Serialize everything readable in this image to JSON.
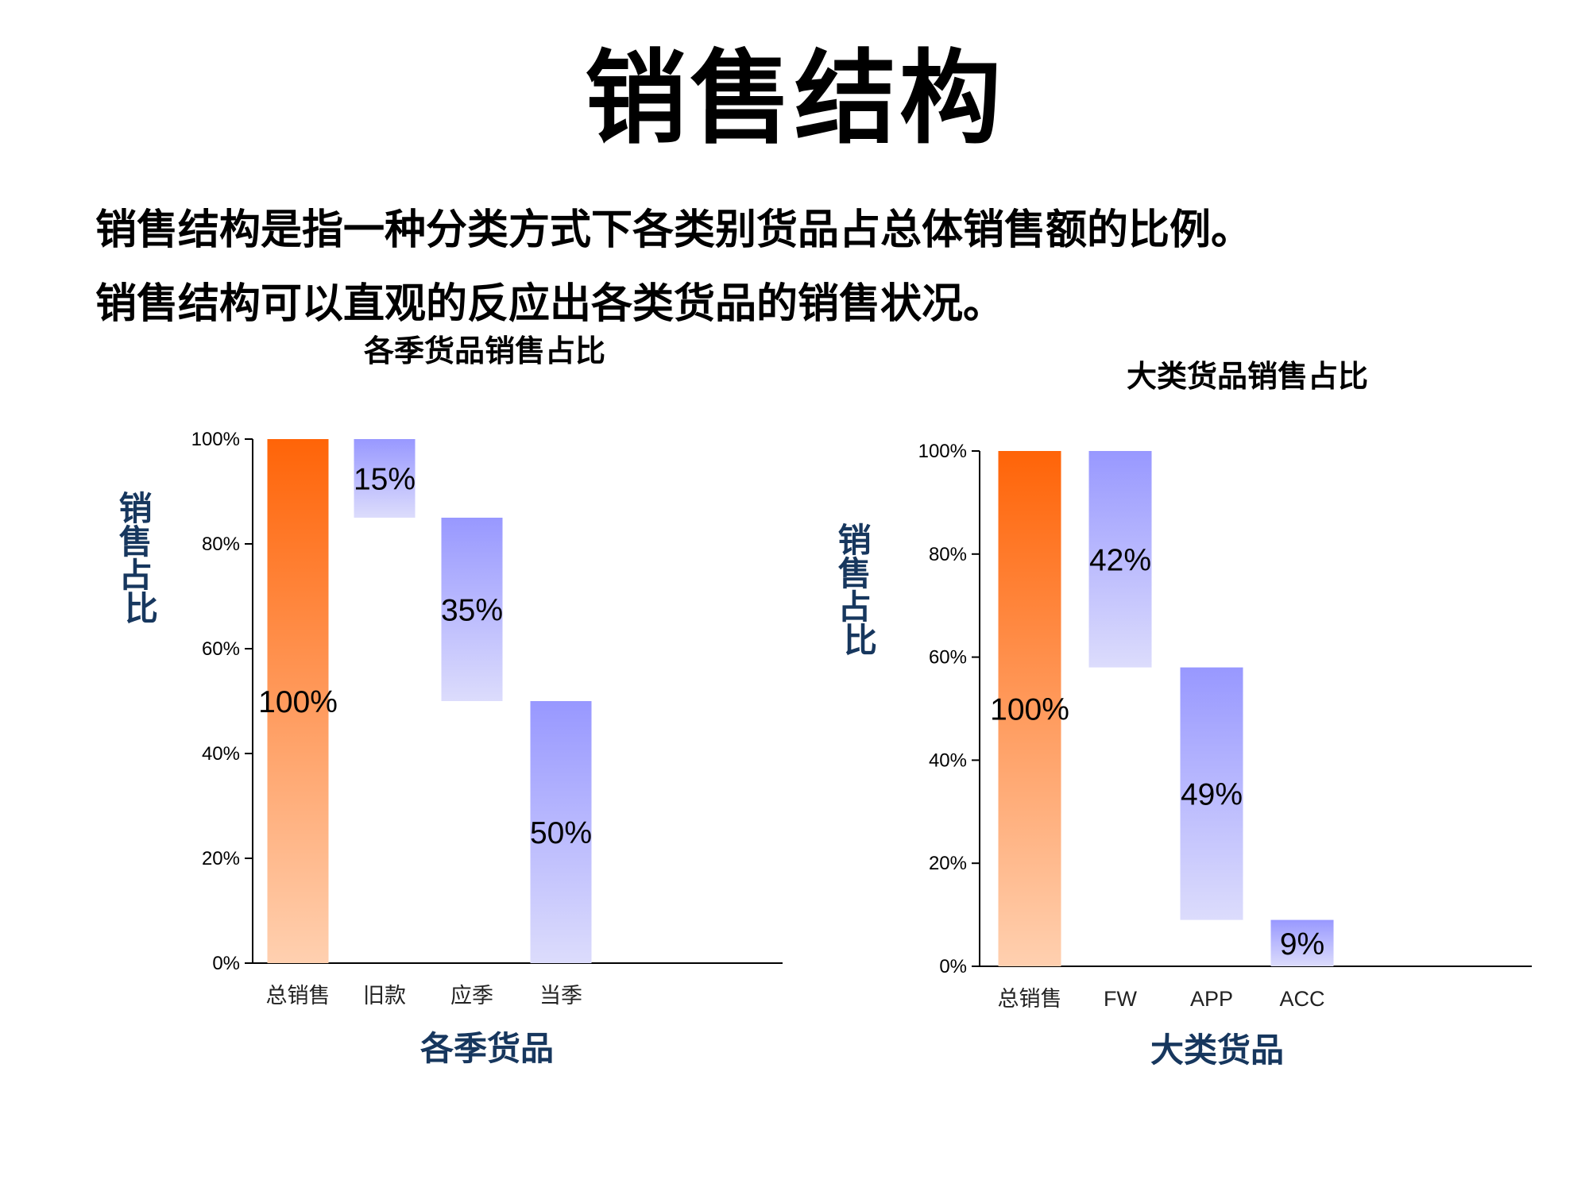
{
  "page": {
    "title": "销售结构",
    "description_1": "销售结构是指一种分类方式下各类别货品占总体销售额的比例。",
    "description_2": "销售结构可以直观的反应出各类货品的销售状况。"
  },
  "colors": {
    "total_bar_top": "#ff6408",
    "total_bar_bottom": "#ffd0b0",
    "part_bar_top": "#9898ff",
    "part_bar_bottom": "#dcdcfc",
    "axis_title": "#17375e"
  },
  "chart_data": [
    {
      "type": "bar",
      "subtype": "waterfall",
      "title": "各季货品销售占比",
      "xlabel": "各季货品",
      "ylabel": "销售占比",
      "ylim": [
        0,
        100
      ],
      "yticks": [
        "0%",
        "20%",
        "40%",
        "60%",
        "80%",
        "100%"
      ],
      "categories": [
        "总销售",
        "旧款",
        "应季",
        "当季"
      ],
      "values": [
        100,
        15,
        35,
        50
      ],
      "ranges": [
        [
          0,
          100
        ],
        [
          85,
          100
        ],
        [
          50,
          85
        ],
        [
          0,
          50
        ]
      ],
      "data_labels": [
        "100%",
        "15%",
        "35%",
        "50%"
      ],
      "grid": false,
      "legend": "none"
    },
    {
      "type": "bar",
      "subtype": "waterfall",
      "title": "大类货品销售占比",
      "xlabel": "大类货品",
      "ylabel": "销售占比",
      "ylim": [
        0,
        100
      ],
      "yticks": [
        "0%",
        "20%",
        "40%",
        "60%",
        "80%",
        "100%"
      ],
      "categories": [
        "总销售",
        "FW",
        "APP",
        "ACC"
      ],
      "values": [
        100,
        42,
        49,
        9
      ],
      "ranges": [
        [
          0,
          100
        ],
        [
          58,
          100
        ],
        [
          9,
          58
        ],
        [
          0,
          9
        ]
      ],
      "data_labels": [
        "100%",
        "42%",
        "49%",
        "9%"
      ],
      "grid": false,
      "legend": "none"
    }
  ]
}
